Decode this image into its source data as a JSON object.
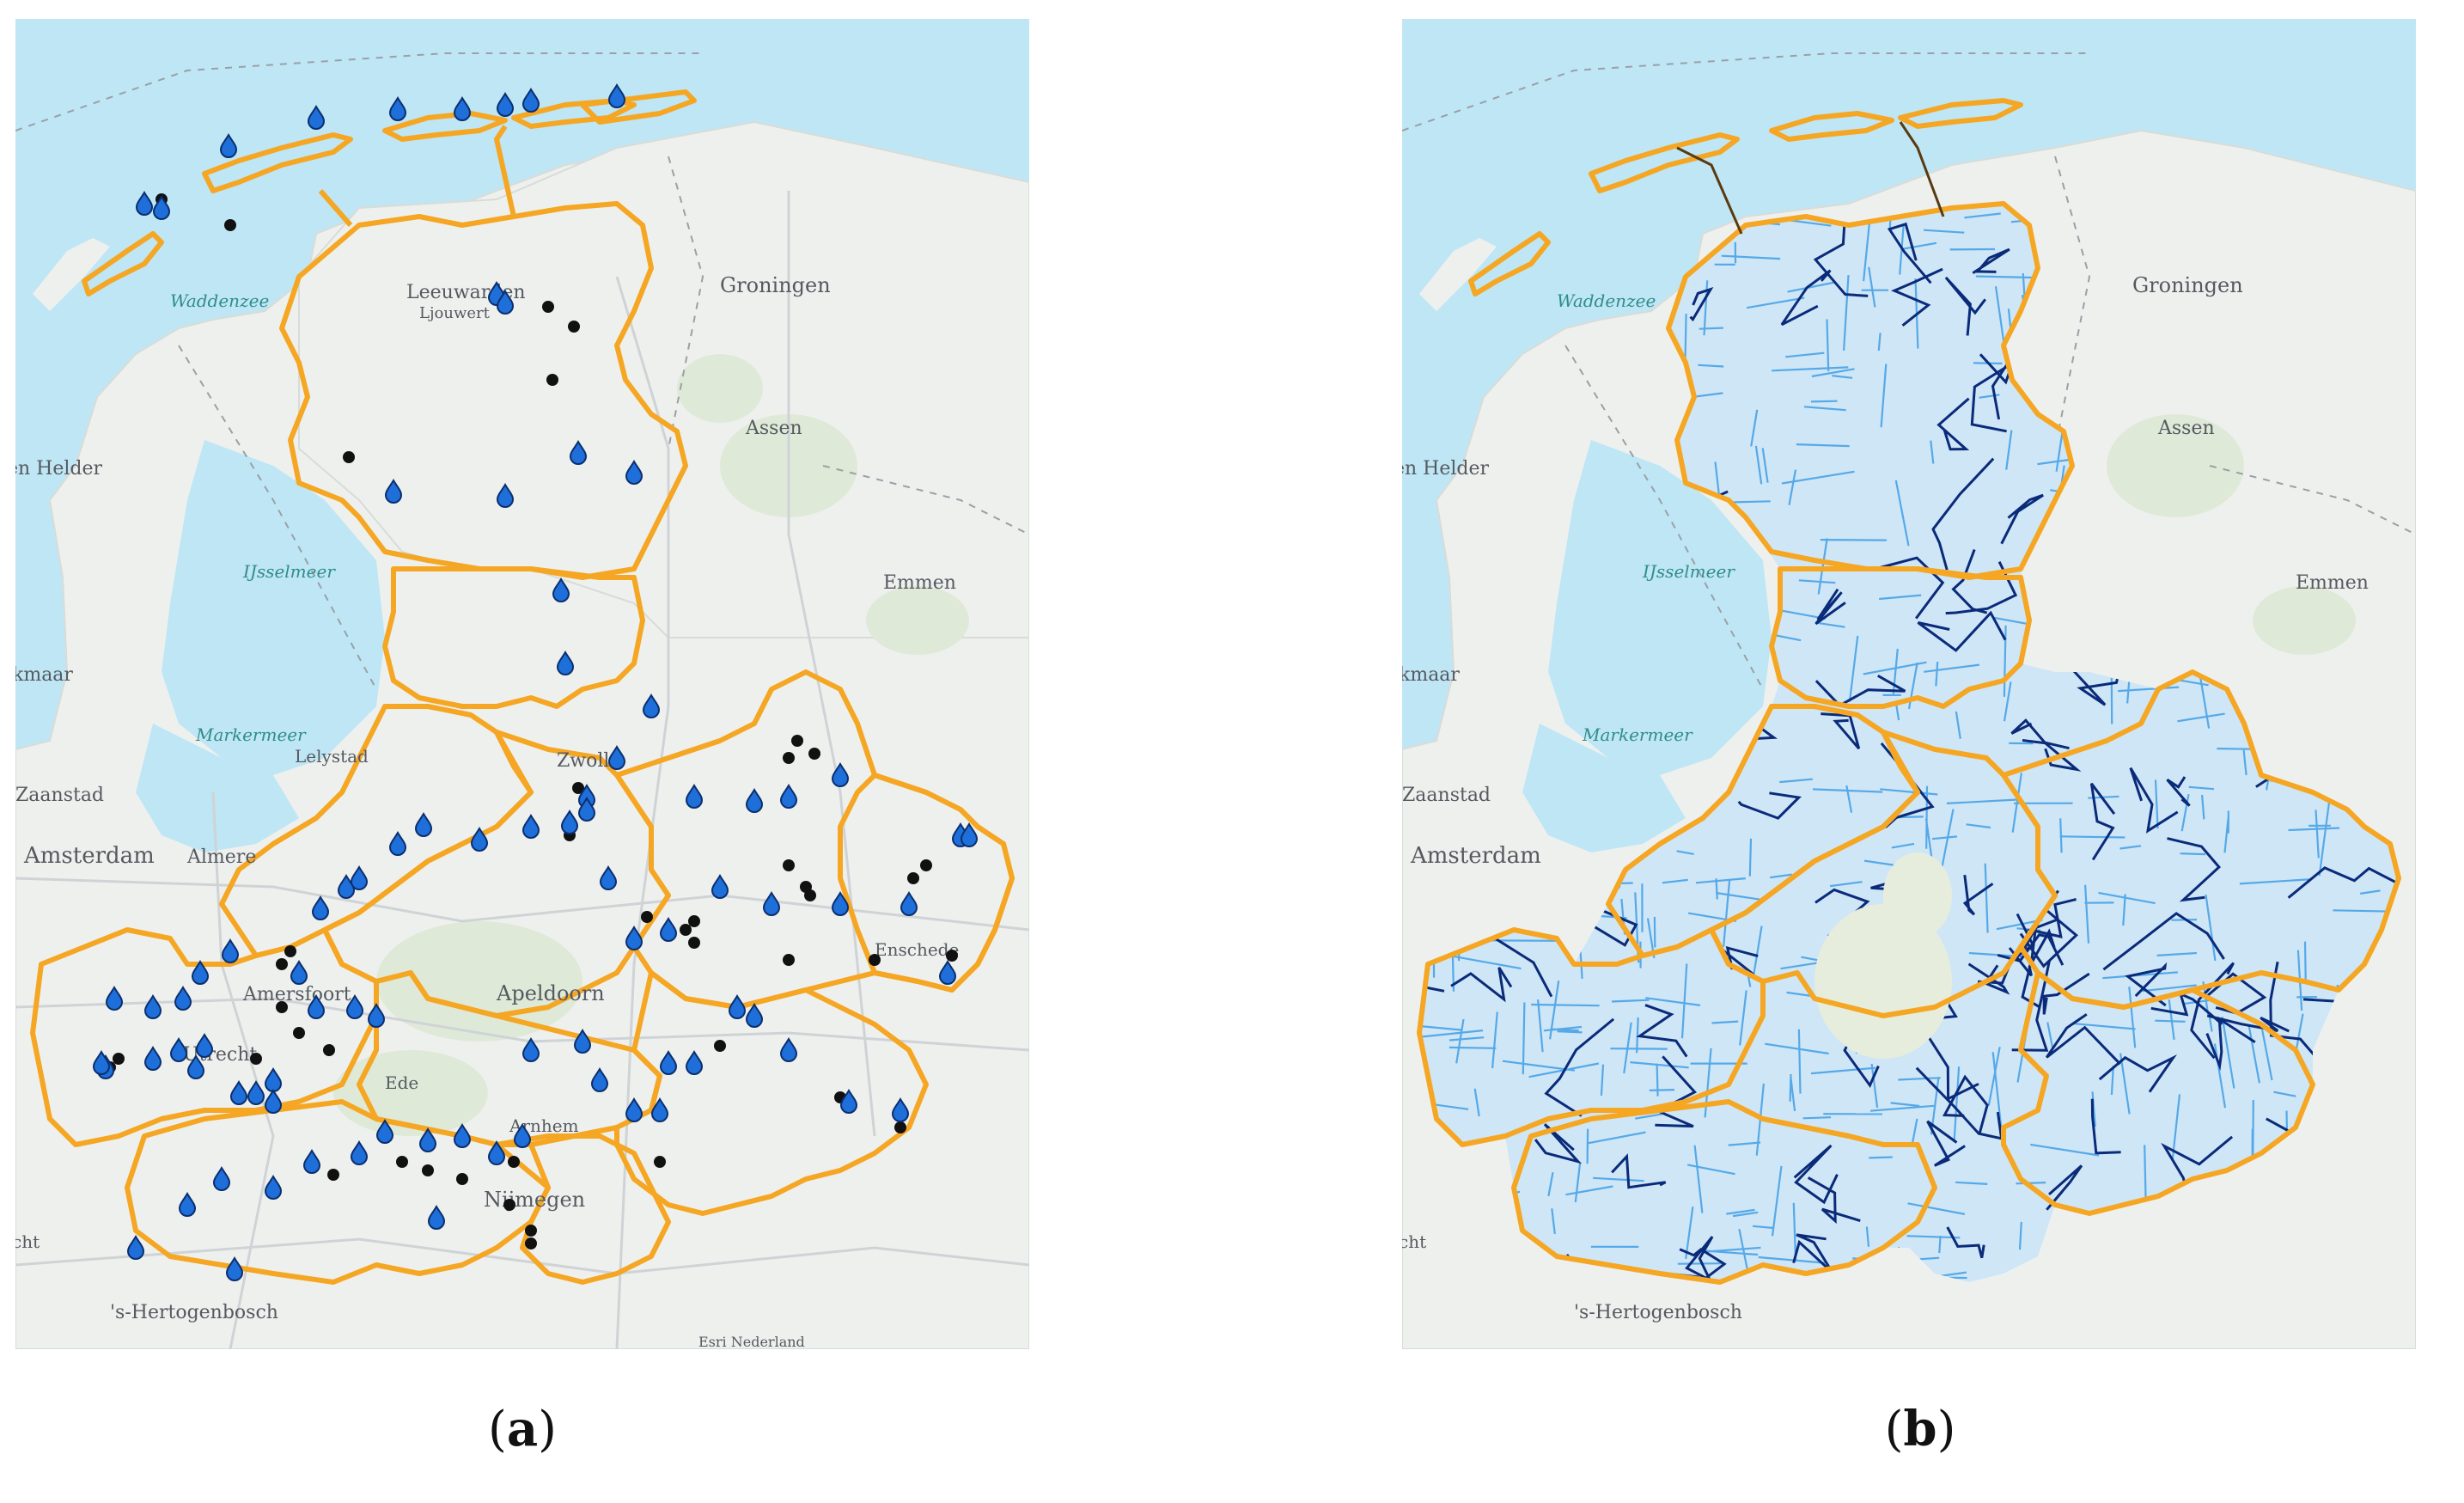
{
  "panels": [
    {
      "id": "a",
      "caption_letter": "a",
      "attribution": "Esri Nederland",
      "labels": [
        "Waddenzee",
        "Leeuwarden",
        "Ljouwert",
        "Groningen",
        "Assen",
        "Emmen",
        "en Helder",
        "IJsselmeer",
        "kmaar",
        "Markermeer",
        "Lelystad",
        "Zaanstad",
        "Amsterdam",
        "Almere",
        "Zwolle",
        "Amersfoort",
        "Apeldoorn",
        "Utrecht",
        "Ede",
        "Arnhem",
        "Enschede",
        "Nijmegen",
        "cht",
        "'s-Hertogenbosch"
      ],
      "marker_types": [
        "blue-drop-icon",
        "black-dot-icon"
      ]
    },
    {
      "id": "b",
      "caption_letter": "b",
      "labels": [
        "Waddenzee",
        "Groningen",
        "Assen",
        "Emmen",
        "en Helder",
        "IJsselmeer",
        "kmaar",
        "Markermeer",
        "Zaanstad",
        "Amsterdam",
        "cht",
        "'s-Hertogenbosch"
      ]
    }
  ],
  "colors": {
    "sea": "#bfe6f5",
    "land": "#eef0ee",
    "boundary": "#f5a623",
    "drop": "#1e6fd9",
    "dot": "#111111",
    "network_light": "#55a9e8",
    "network_dark": "#0a2a7a"
  }
}
